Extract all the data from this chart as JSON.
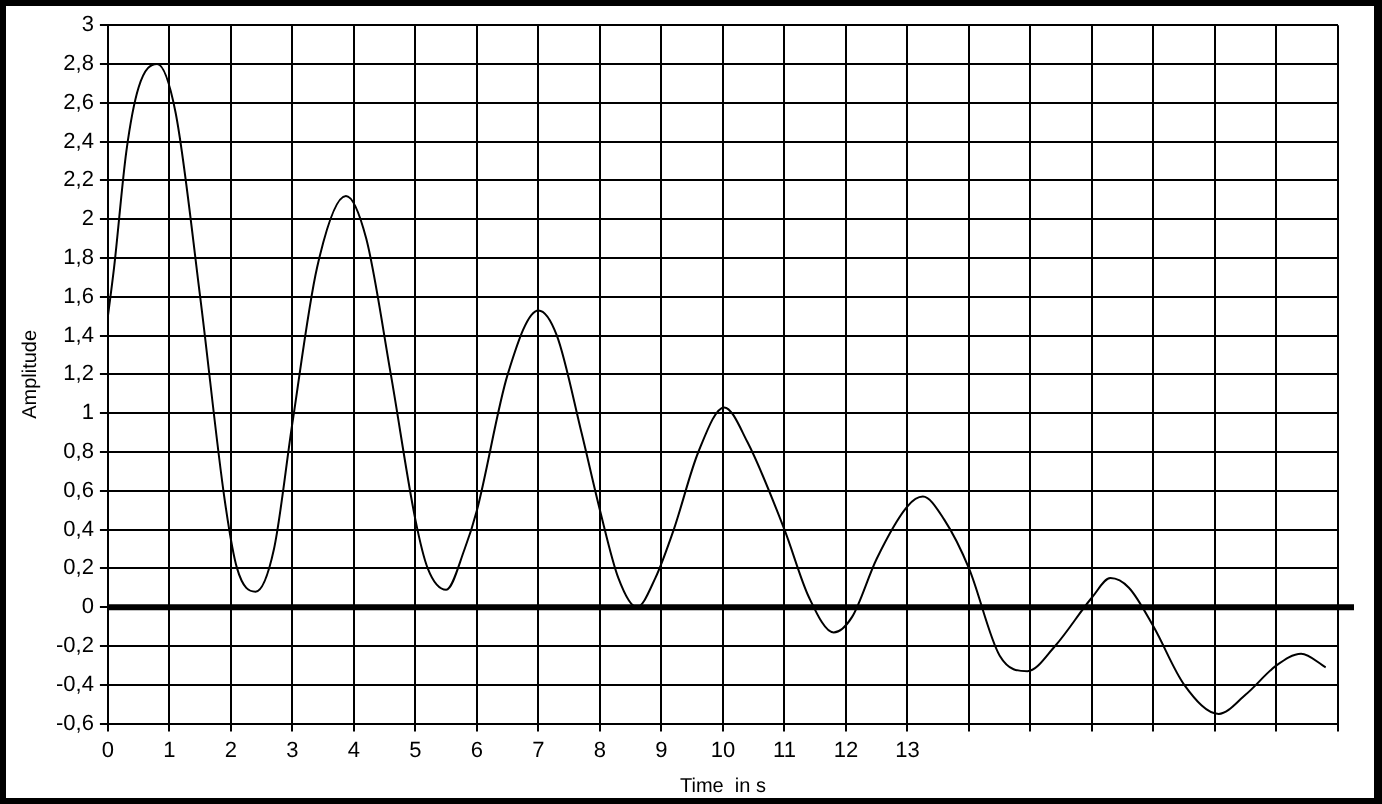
{
  "chart_data": {
    "type": "line",
    "xlabel": "Time  in s",
    "ylabel": "Amplitude",
    "series": [
      {
        "color": "#000000",
        "x": [
          0,
          0.1,
          0.3,
          0.5,
          0.8,
          1.1,
          1.5,
          1.9,
          2.1,
          2.4,
          2.7,
          3,
          3.4,
          3.87,
          4.2,
          4.6,
          5,
          5.2,
          5.5,
          5.8,
          6,
          6.5,
          7,
          7.3,
          7.7,
          8,
          8.3,
          8.6,
          8.9,
          9.2,
          9.6,
          10.02,
          10.4,
          11,
          11.4,
          11.8,
          12.1,
          12.5,
          13,
          13.25,
          13.6,
          14,
          14.5,
          14.95,
          15.4,
          16,
          16.3,
          16.6,
          17,
          17.5,
          18.06,
          18.5,
          19,
          19.4,
          19.8
        ],
        "values": [
          1.5,
          1.75,
          2.35,
          2.68,
          2.8,
          2.55,
          1.6,
          0.55,
          0.2,
          0.08,
          0.3,
          0.95,
          1.75,
          2.12,
          1.9,
          1.2,
          0.45,
          0.2,
          0.09,
          0.3,
          0.5,
          1.2,
          1.53,
          1.4,
          0.9,
          0.5,
          0.15,
          0,
          0.15,
          0.4,
          0.8,
          1.03,
          0.85,
          0.4,
          0.05,
          -0.13,
          -0.05,
          0.25,
          0.52,
          0.57,
          0.45,
          0.2,
          -0.25,
          -0.33,
          -0.2,
          0.05,
          0.15,
          0.1,
          -0.1,
          -0.4,
          -0.55,
          -0.45,
          -0.3,
          -0.24,
          -0.31
        ]
      }
    ],
    "xlim": [
      0,
      20
    ],
    "xticks": [
      0,
      1,
      2,
      3,
      4,
      5,
      6,
      7,
      8,
      9,
      10,
      11,
      12,
      13,
      {
        "value": 14,
        "label": null
      },
      {
        "value": 15,
        "label": null
      },
      {
        "value": 16,
        "label": null
      },
      {
        "value": 17,
        "label": null
      },
      {
        "value": 18,
        "label": null
      },
      {
        "value": 19,
        "label": null
      },
      {
        "value": 20,
        "label": null
      }
    ],
    "ylim": [
      -0.6,
      3
    ],
    "yticks": [
      {
        "value": -0.6,
        "label": "-0,6"
      },
      {
        "value": -0.4,
        "label": "-0,4"
      },
      {
        "value": -0.2,
        "label": "-0,2"
      },
      0,
      {
        "value": 0.2,
        "label": "0,2"
      },
      {
        "value": 0.4,
        "label": "0,4"
      },
      {
        "value": 0.6,
        "label": "0,6"
      },
      {
        "value": 0.8,
        "label": "0,8"
      },
      1,
      {
        "value": 1.2,
        "label": "1,2"
      },
      {
        "value": 1.4,
        "label": "1,4"
      },
      {
        "value": 1.6,
        "label": "1,6"
      },
      {
        "value": 1.8,
        "label": "1,8"
      },
      2,
      {
        "value": 2.2,
        "label": "2,2"
      },
      {
        "value": 2.4,
        "label": "2,4"
      },
      {
        "value": 2.6,
        "label": "2,6"
      },
      {
        "value": 2.8,
        "label": "2,8"
      },
      3
    ],
    "ref_lines": [
      {
        "axis": "y",
        "value": 0,
        "color": "#000000"
      }
    ],
    "grid": true,
    "legend": false,
    "marker": "none",
    "line_style": "solid"
  }
}
